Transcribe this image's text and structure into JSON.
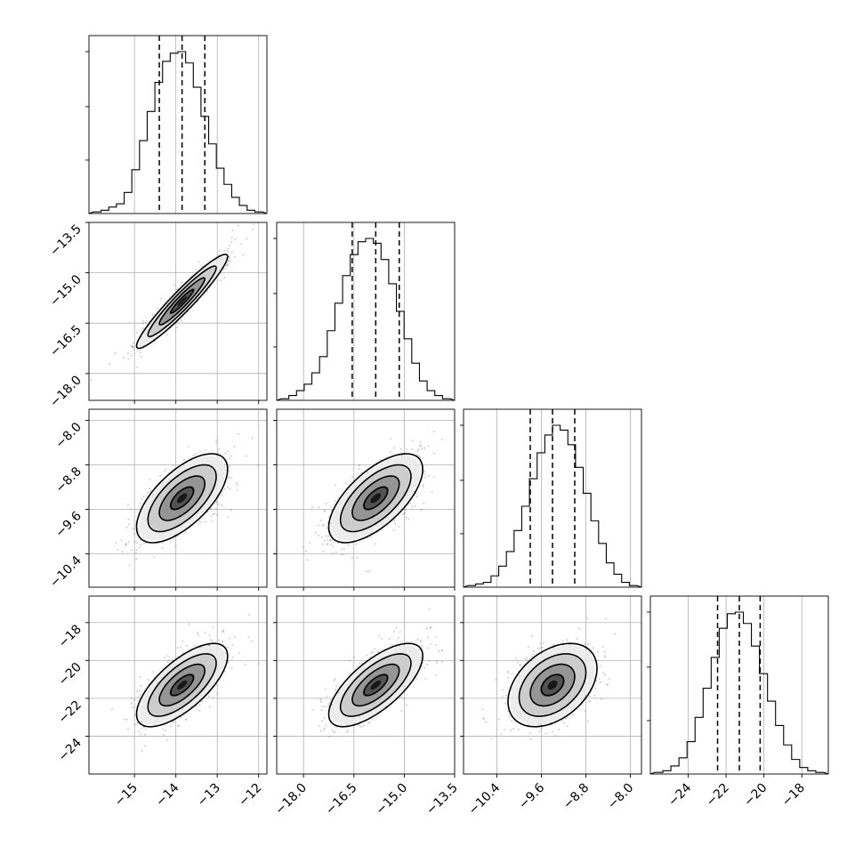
{
  "chart_data": {
    "type": "corner",
    "colors": {
      "line": "#000000",
      "grid": "#b0b0b0",
      "points": "#555555"
    },
    "parameters": [
      {
        "range": [
          -16.1,
          -11.8
        ],
        "ticks": [
          -15,
          -14,
          -13,
          -12
        ],
        "tick_labels": [
          "−15",
          "−14",
          "−13",
          "−12"
        ],
        "quantiles": [
          -14.4,
          -13.85,
          -13.3
        ],
        "hist": [
          0.01,
          0.02,
          0.04,
          0.06,
          0.13,
          0.27,
          0.45,
          0.63,
          0.81,
          0.94,
          0.99,
          1.0,
          0.93,
          0.78,
          0.6,
          0.43,
          0.28,
          0.18,
          0.1,
          0.05,
          0.02,
          0.01
        ]
      },
      {
        "range": [
          -18.8,
          -13.5
        ],
        "ticks": [
          -18.0,
          -16.5,
          -15.0,
          -13.5
        ],
        "tick_labels": [
          "−18.0",
          "−16.5",
          "−15.0",
          "−13.5"
        ],
        "quantiles": [
          -16.55,
          -15.85,
          -15.15
        ],
        "hist": [
          0.01,
          0.03,
          0.06,
          0.1,
          0.17,
          0.27,
          0.43,
          0.6,
          0.77,
          0.9,
          0.98,
          1.0,
          0.97,
          0.87,
          0.72,
          0.55,
          0.38,
          0.23,
          0.12,
          0.06,
          0.03,
          0.01
        ]
      },
      {
        "range": [
          -11.0,
          -7.8
        ],
        "ticks": [
          -10.4,
          -9.6,
          -8.8,
          -8.0
        ],
        "tick_labels": [
          "−10.4",
          "−9.6",
          "−8.8",
          "−8.0"
        ],
        "quantiles": [
          -9.8,
          -9.4,
          -9.0
        ],
        "hist": [
          0.01,
          0.02,
          0.03,
          0.07,
          0.13,
          0.22,
          0.35,
          0.5,
          0.67,
          0.83,
          0.94,
          1.0,
          0.97,
          0.88,
          0.74,
          0.58,
          0.41,
          0.27,
          0.15,
          0.08,
          0.03,
          0.01
        ]
      },
      {
        "range": [
          -26.0,
          -16.6
        ],
        "ticks": [
          -24,
          -22,
          -20,
          -18
        ],
        "tick_labels": [
          "−24",
          "−22",
          "−20",
          "−18"
        ],
        "quantiles": [
          -22.45,
          -21.3,
          -20.2
        ],
        "hist": [
          0.01,
          0.02,
          0.05,
          0.1,
          0.2,
          0.35,
          0.53,
          0.72,
          0.9,
          0.99,
          1.0,
          0.93,
          0.79,
          0.62,
          0.45,
          0.3,
          0.18,
          0.09,
          0.04,
          0.02,
          0.01
        ]
      }
    ],
    "pairs": [
      {
        "row": 1,
        "col": 0,
        "mean": [
          -13.85,
          -15.85
        ],
        "sd": [
          0.55,
          0.7
        ],
        "rho": 0.95
      },
      {
        "row": 2,
        "col": 0,
        "mean": [
          -13.85,
          -9.4
        ],
        "sd": [
          0.55,
          0.4
        ],
        "rho": 0.65
      },
      {
        "row": 2,
        "col": 1,
        "mean": [
          -15.85,
          -9.4
        ],
        "sd": [
          0.7,
          0.4
        ],
        "rho": 0.65
      },
      {
        "row": 3,
        "col": 0,
        "mean": [
          -13.85,
          -21.3
        ],
        "sd": [
          0.55,
          1.1
        ],
        "rho": 0.7
      },
      {
        "row": 3,
        "col": 1,
        "mean": [
          -15.85,
          -21.3
        ],
        "sd": [
          0.7,
          1.1
        ],
        "rho": 0.7
      },
      {
        "row": 3,
        "col": 2,
        "mean": [
          -9.4,
          -21.3
        ],
        "sd": [
          0.4,
          1.1
        ],
        "rho": 0.4
      }
    ],
    "contour_levels_sigma": [
      0.5,
      1.0,
      1.5,
      2.0
    ],
    "grid": true
  }
}
